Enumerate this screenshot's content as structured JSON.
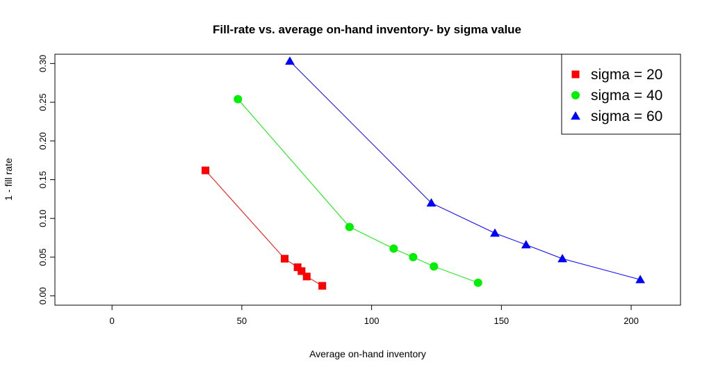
{
  "chart_data": {
    "type": "line",
    "title": "Fill-rate vs. average on-hand inventory- by sigma value",
    "xlabel": "Average on-hand inventory",
    "ylabel": "1 - fill rate",
    "xlim": [
      -22,
      219
    ],
    "ylim": [
      -0.012,
      0.312
    ],
    "xticks": [
      0,
      50,
      100,
      150,
      200
    ],
    "xtick_labels": [
      "0",
      "50",
      "100",
      "150",
      "200"
    ],
    "yticks": [
      0.0,
      0.05,
      0.1,
      0.15,
      0.2,
      0.25,
      0.3
    ],
    "ytick_labels": [
      "0.00",
      "0.05",
      "0.10",
      "0.15",
      "0.20",
      "0.25",
      "0.30"
    ],
    "grid": false,
    "legend_position": "top-right",
    "series": [
      {
        "name": "sigma = 20",
        "color": "#ff0000",
        "marker": "square",
        "points": [
          [
            36,
            0.162
          ],
          [
            66.5,
            0.048
          ],
          [
            71.5,
            0.037
          ],
          [
            73,
            0.032
          ],
          [
            75,
            0.025
          ],
          [
            81,
            0.013
          ]
        ]
      },
      {
        "name": "sigma = 40",
        "color": "#00ee00",
        "marker": "circle",
        "points": [
          [
            48.5,
            0.254
          ],
          [
            91.5,
            0.089
          ],
          [
            108.5,
            0.061
          ],
          [
            116,
            0.05
          ],
          [
            124,
            0.038
          ],
          [
            141,
            0.017
          ]
        ]
      },
      {
        "name": "sigma = 60",
        "color": "#0000ff",
        "marker": "triangle",
        "points": [
          [
            68.5,
            0.303
          ],
          [
            123,
            0.12
          ],
          [
            147.5,
            0.081
          ],
          [
            159.5,
            0.066
          ],
          [
            173.5,
            0.048
          ],
          [
            203.5,
            0.021
          ]
        ]
      }
    ]
  }
}
